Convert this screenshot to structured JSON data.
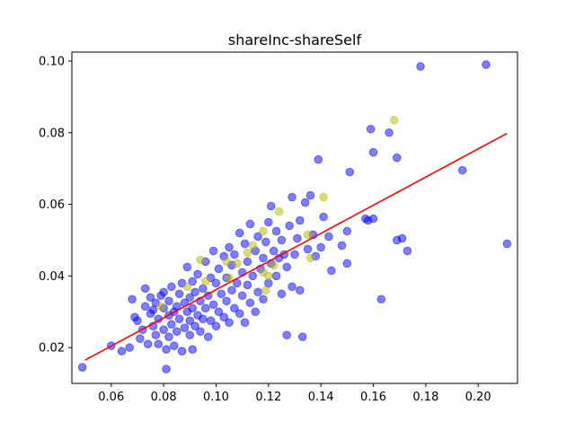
{
  "chart_data": {
    "type": "scatter",
    "title": "shareInc-shareSelf",
    "xlabel": "",
    "ylabel": "",
    "xlim": [
      0.045,
      0.215
    ],
    "ylim": [
      0.01,
      0.1025
    ],
    "xticks": [
      0.06,
      0.08,
      0.1,
      0.12,
      0.14,
      0.16,
      0.18,
      0.2
    ],
    "xtick_labels": [
      "0.06",
      "0.08",
      "0.10",
      "0.12",
      "0.14",
      "0.16",
      "0.18",
      "0.20"
    ],
    "yticks": [
      0.02,
      0.04,
      0.06,
      0.08,
      0.1
    ],
    "ytick_labels": [
      "0.02",
      "0.04",
      "0.06",
      "0.08",
      "0.10"
    ],
    "grid": false,
    "colors": {
      "blue": "#0000ff",
      "yellow": "#b5b500",
      "fit": "#ff0000"
    },
    "series": [
      {
        "color": "blue",
        "points": [
          [
            0.049,
            0.0145
          ],
          [
            0.06,
            0.0205
          ],
          [
            0.064,
            0.019
          ],
          [
            0.067,
            0.02
          ],
          [
            0.068,
            0.0335
          ],
          [
            0.069,
            0.0285
          ],
          [
            0.07,
            0.0275
          ],
          [
            0.071,
            0.0225
          ],
          [
            0.072,
            0.025
          ],
          [
            0.073,
            0.0315
          ],
          [
            0.073,
            0.0365
          ],
          [
            0.074,
            0.021
          ],
          [
            0.075,
            0.0295
          ],
          [
            0.075,
            0.034
          ],
          [
            0.076,
            0.026
          ],
          [
            0.076,
            0.0305
          ],
          [
            0.077,
            0.0235
          ],
          [
            0.077,
            0.0325
          ],
          [
            0.078,
            0.021
          ],
          [
            0.078,
            0.028
          ],
          [
            0.079,
            0.0345
          ],
          [
            0.08,
            0.025
          ],
          [
            0.08,
            0.031
          ],
          [
            0.08,
            0.0355
          ],
          [
            0.081,
            0.014
          ],
          [
            0.081,
            0.0195
          ],
          [
            0.082,
            0.023
          ],
          [
            0.082,
            0.029
          ],
          [
            0.082,
            0.033
          ],
          [
            0.083,
            0.0265
          ],
          [
            0.083,
            0.037
          ],
          [
            0.084,
            0.0205
          ],
          [
            0.084,
            0.03
          ],
          [
            0.085,
            0.0245
          ],
          [
            0.085,
            0.0315
          ],
          [
            0.086,
            0.028
          ],
          [
            0.086,
            0.035
          ],
          [
            0.087,
            0.019
          ],
          [
            0.087,
            0.038
          ],
          [
            0.088,
            0.0255
          ],
          [
            0.088,
            0.0325
          ],
          [
            0.089,
            0.03
          ],
          [
            0.089,
            0.0425
          ],
          [
            0.09,
            0.0235
          ],
          [
            0.09,
            0.0275
          ],
          [
            0.09,
            0.034
          ],
          [
            0.091,
            0.0195
          ],
          [
            0.091,
            0.031
          ],
          [
            0.091,
            0.0385
          ],
          [
            0.092,
            0.026
          ],
          [
            0.092,
            0.0355
          ],
          [
            0.093,
            0.029
          ],
          [
            0.093,
            0.0405
          ],
          [
            0.094,
            0.0245
          ],
          [
            0.094,
            0.033
          ],
          [
            0.095,
            0.028
          ],
          [
            0.095,
            0.0365
          ],
          [
            0.096,
            0.031
          ],
          [
            0.096,
            0.044
          ],
          [
            0.097,
            0.023
          ],
          [
            0.097,
            0.0345
          ],
          [
            0.098,
            0.0275
          ],
          [
            0.098,
            0.0395
          ],
          [
            0.099,
            0.032
          ],
          [
            0.099,
            0.047
          ],
          [
            0.1,
            0.026
          ],
          [
            0.1,
            0.038
          ],
          [
            0.101,
            0.03
          ],
          [
            0.101,
            0.042
          ],
          [
            0.102,
            0.035
          ],
          [
            0.103,
            0.0285
          ],
          [
            0.103,
            0.0455
          ],
          [
            0.104,
            0.033
          ],
          [
            0.104,
            0.0395
          ],
          [
            0.105,
            0.027
          ],
          [
            0.105,
            0.048
          ],
          [
            0.106,
            0.036
          ],
          [
            0.106,
            0.043
          ],
          [
            0.107,
            0.031
          ],
          [
            0.107,
            0.046
          ],
          [
            0.108,
            0.038
          ],
          [
            0.109,
            0.0295
          ],
          [
            0.109,
            0.052
          ],
          [
            0.11,
            0.0345
          ],
          [
            0.11,
            0.041
          ],
          [
            0.111,
            0.027
          ],
          [
            0.111,
            0.049
          ],
          [
            0.112,
            0.0375
          ],
          [
            0.112,
            0.044
          ],
          [
            0.113,
            0.0325
          ],
          [
            0.113,
            0.0545
          ],
          [
            0.114,
            0.04
          ],
          [
            0.115,
            0.03
          ],
          [
            0.115,
            0.047
          ],
          [
            0.116,
            0.0355
          ],
          [
            0.116,
            0.051
          ],
          [
            0.117,
            0.042
          ],
          [
            0.118,
            0.0335
          ],
          [
            0.118,
            0.045
          ],
          [
            0.119,
            0.0495
          ],
          [
            0.12,
            0.038
          ],
          [
            0.12,
            0.055
          ],
          [
            0.121,
            0.0435
          ],
          [
            0.121,
            0.0595
          ],
          [
            0.122,
            0.047
          ],
          [
            0.123,
            0.04
          ],
          [
            0.123,
            0.0525
          ],
          [
            0.124,
            0.045
          ],
          [
            0.125,
            0.035
          ],
          [
            0.125,
            0.05
          ],
          [
            0.126,
            0.046
          ],
          [
            0.127,
            0.0235
          ],
          [
            0.127,
            0.0425
          ],
          [
            0.128,
            0.054
          ],
          [
            0.129,
            0.037
          ],
          [
            0.129,
            0.062
          ],
          [
            0.13,
            0.046
          ],
          [
            0.131,
            0.0505
          ],
          [
            0.132,
            0.036
          ],
          [
            0.132,
            0.0555
          ],
          [
            0.133,
            0.023
          ],
          [
            0.134,
            0.0605
          ],
          [
            0.135,
            0.0475
          ],
          [
            0.136,
            0.0625
          ],
          [
            0.137,
            0.0515
          ],
          [
            0.138,
            0.0455
          ],
          [
            0.139,
            0.0725
          ],
          [
            0.14,
            0.048
          ],
          [
            0.141,
            0.0565
          ],
          [
            0.143,
            0.051
          ],
          [
            0.144,
            0.0415
          ],
          [
            0.148,
            0.0485
          ],
          [
            0.15,
            0.0435
          ],
          [
            0.15,
            0.0525
          ],
          [
            0.151,
            0.069
          ],
          [
            0.157,
            0.056
          ],
          [
            0.158,
            0.0555
          ],
          [
            0.159,
            0.081
          ],
          [
            0.16,
            0.0745
          ],
          [
            0.16,
            0.056
          ],
          [
            0.163,
            0.0335
          ],
          [
            0.166,
            0.08
          ],
          [
            0.169,
            0.073
          ],
          [
            0.169,
            0.05
          ],
          [
            0.171,
            0.0505
          ],
          [
            0.173,
            0.047
          ],
          [
            0.178,
            0.0985
          ],
          [
            0.194,
            0.0695
          ],
          [
            0.203,
            0.099
          ],
          [
            0.211,
            0.049
          ]
        ]
      },
      {
        "color": "yellow",
        "points": [
          [
            0.079,
            0.0315
          ],
          [
            0.089,
            0.037
          ],
          [
            0.094,
            0.0445
          ],
          [
            0.096,
            0.0385
          ],
          [
            0.104,
            0.044
          ],
          [
            0.105,
            0.0395
          ],
          [
            0.108,
            0.0435
          ],
          [
            0.112,
            0.0465
          ],
          [
            0.114,
            0.0485
          ],
          [
            0.118,
            0.041
          ],
          [
            0.118,
            0.0525
          ],
          [
            0.119,
            0.036
          ],
          [
            0.12,
            0.04
          ],
          [
            0.122,
            0.043
          ],
          [
            0.124,
            0.058
          ],
          [
            0.135,
            0.0515
          ],
          [
            0.136,
            0.045
          ],
          [
            0.141,
            0.062
          ],
          [
            0.168,
            0.0835
          ]
        ]
      }
    ],
    "fit_line": {
      "x": [
        0.05,
        0.211
      ],
      "y": [
        0.0165,
        0.0798
      ]
    }
  }
}
